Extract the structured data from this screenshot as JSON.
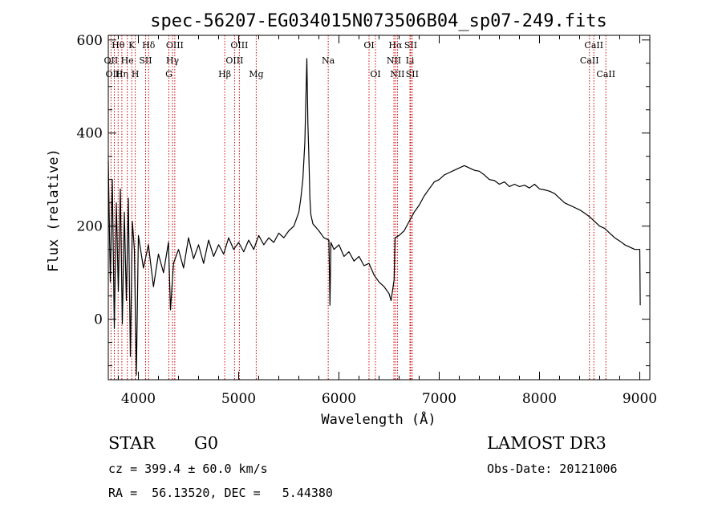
{
  "chart_data": {
    "type": "line",
    "title": "spec-56207-EG034015N073506B04_sp07-249.fits",
    "xlabel": "Wavelength (Å)",
    "ylabel": "Flux (relative)",
    "xlim": [
      3700,
      9100
    ],
    "ylim": [
      -130,
      610
    ],
    "x_ticks": [
      4000,
      5000,
      6000,
      7000,
      8000,
      9000
    ],
    "y_ticks": [
      0,
      200,
      400,
      600
    ],
    "grid": false,
    "legend": "none",
    "line_color": "#000000",
    "marker_color": "#cc0000",
    "series": [
      {
        "x": [
          3700,
          3720,
          3740,
          3760,
          3780,
          3800,
          3820,
          3840,
          3860,
          3880,
          3900,
          3920,
          3940,
          3960,
          3980,
          4000,
          4050,
          4100,
          4150,
          4200,
          4250,
          4300,
          4320,
          4350,
          4400,
          4450,
          4500,
          4550,
          4600,
          4650,
          4700,
          4750,
          4800,
          4850,
          4900,
          4950,
          5000,
          5050,
          5100,
          5150,
          5200,
          5250,
          5300,
          5350,
          5400,
          5450,
          5500,
          5550,
          5600,
          5620,
          5640,
          5660,
          5680,
          5690,
          5700,
          5710,
          5720,
          5740,
          5760,
          5800,
          5850,
          5900,
          5910,
          5920,
          5950,
          6000,
          6050,
          6100,
          6150,
          6200,
          6250,
          6300,
          6350,
          6400,
          6450,
          6500,
          6520,
          6550,
          6560,
          6600,
          6650,
          6700,
          6750,
          6800,
          6850,
          6900,
          6950,
          7000,
          7050,
          7100,
          7150,
          7200,
          7250,
          7300,
          7350,
          7400,
          7450,
          7500,
          7550,
          7600,
          7650,
          7700,
          7750,
          7800,
          7850,
          7900,
          7950,
          8000,
          8050,
          8100,
          8150,
          8200,
          8250,
          8300,
          8350,
          8400,
          8450,
          8500,
          8550,
          8600,
          8650,
          8700,
          8750,
          8800,
          8850,
          8900,
          8950,
          9000,
          9005
        ],
        "y": [
          340,
          80,
          300,
          -20,
          250,
          60,
          280,
          -10,
          230,
          40,
          260,
          -80,
          210,
          150,
          -120,
          180,
          110,
          160,
          70,
          140,
          100,
          165,
          20,
          120,
          150,
          110,
          175,
          130,
          160,
          120,
          170,
          135,
          160,
          140,
          175,
          150,
          165,
          145,
          170,
          150,
          180,
          160,
          175,
          165,
          185,
          175,
          190,
          200,
          230,
          260,
          300,
          380,
          560,
          420,
          350,
          260,
          225,
          205,
          200,
          190,
          175,
          170,
          30,
          165,
          150,
          160,
          135,
          145,
          125,
          135,
          115,
          120,
          95,
          80,
          70,
          55,
          40,
          85,
          175,
          180,
          190,
          210,
          230,
          245,
          265,
          280,
          295,
          300,
          310,
          315,
          320,
          325,
          330,
          325,
          320,
          318,
          310,
          300,
          298,
          290,
          295,
          285,
          290,
          285,
          288,
          282,
          290,
          280,
          278,
          275,
          270,
          260,
          250,
          245,
          240,
          235,
          228,
          220,
          210,
          200,
          195,
          185,
          175,
          168,
          160,
          155,
          150,
          150,
          30
        ]
      }
    ],
    "line_markers": [
      {
        "label": "Hθ",
        "x": 3798,
        "row": 1
      },
      {
        "label": "OII",
        "x": 3727,
        "row": 2
      },
      {
        "label": "OIII",
        "x": 3760,
        "row": 3
      },
      {
        "label": "Hη",
        "x": 3835,
        "row": 3
      },
      {
        "label": "He",
        "x": 3889,
        "row": 2
      },
      {
        "label": "K",
        "x": 3934,
        "row": 1
      },
      {
        "label": "H",
        "x": 3969,
        "row": 3
      },
      {
        "label": "SII",
        "x": 4072,
        "row": 2
      },
      {
        "label": "Hδ",
        "x": 4102,
        "row": 1
      },
      {
        "label": "OIII",
        "x": 4363,
        "row": 1
      },
      {
        "label": "Hγ",
        "x": 4340,
        "row": 2
      },
      {
        "label": "G",
        "x": 4304,
        "row": 3
      },
      {
        "label": "Hβ",
        "x": 4861,
        "row": 3
      },
      {
        "label": "OIII",
        "x": 5007,
        "row": 1
      },
      {
        "label": "OIII",
        "x": 4959,
        "row": 2
      },
      {
        "label": "Mg",
        "x": 5175,
        "row": 3
      },
      {
        "label": "Na",
        "x": 5893,
        "row": 2
      },
      {
        "label": "OI",
        "x": 6300,
        "row": 1
      },
      {
        "label": "OI",
        "x": 6364,
        "row": 3
      },
      {
        "label": "Hα",
        "x": 6563,
        "row": 1
      },
      {
        "label": "NII",
        "x": 6548,
        "row": 2
      },
      {
        "label": "NII",
        "x": 6583,
        "row": 3
      },
      {
        "label": "SII",
        "x": 6716,
        "row": 1
      },
      {
        "label": "Li",
        "x": 6708,
        "row": 2
      },
      {
        "label": "SII",
        "x": 6731,
        "row": 3
      },
      {
        "label": "CaII",
        "x": 8542,
        "row": 1
      },
      {
        "label": "CaII",
        "x": 8498,
        "row": 2
      },
      {
        "label": "CaII",
        "x": 8662,
        "row": 3
      }
    ]
  },
  "info": {
    "class": "STAR",
    "subclass": "G0",
    "survey": "LAMOST DR3",
    "cz": "cz = 399.4 ± 60.0 km/s",
    "obs_date": "Obs-Date: 20121006",
    "radec": "RA =  56.13520, DEC =   5.44380"
  }
}
